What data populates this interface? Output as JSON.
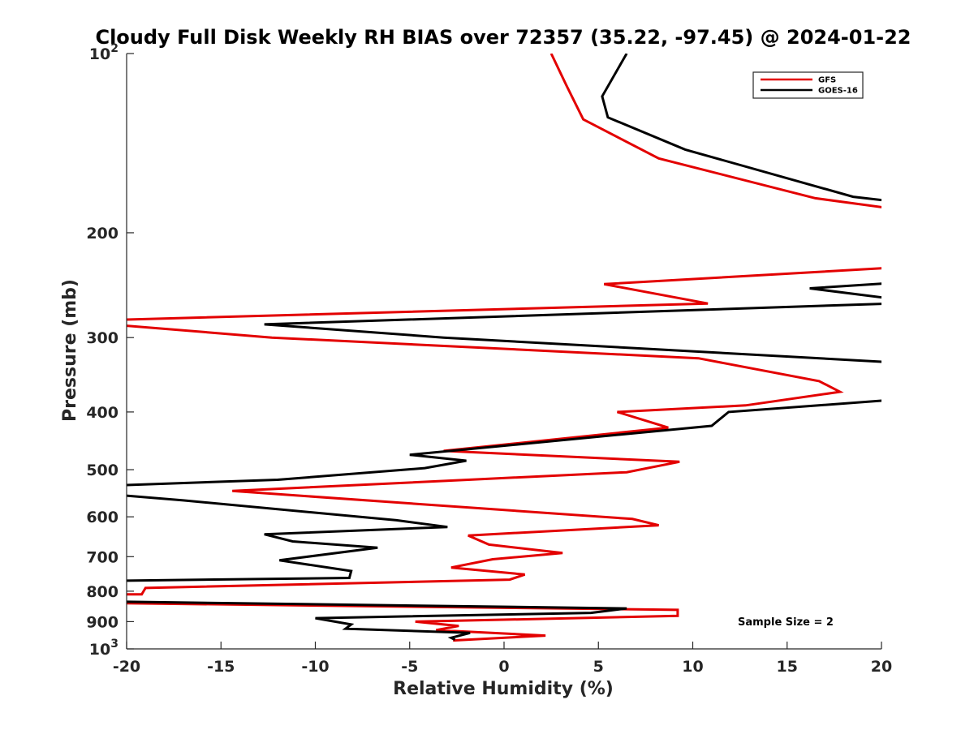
{
  "chart_data": {
    "type": "line",
    "title": "Cloudy Full Disk Weekly RH BIAS over 72357 (35.22, -97.45) @ 2024-01-22",
    "xlabel": "Relative Humidity (%)",
    "ylabel": "Pressure (mb)",
    "xlim": [
      -20,
      20
    ],
    "ylim": [
      100,
      1000
    ],
    "y_scale": "log",
    "y_reversed": true,
    "grid": false,
    "legend_position": "top-right",
    "x_ticks": [
      {
        "value": -20,
        "label": "-20"
      },
      {
        "value": -15,
        "label": "-15"
      },
      {
        "value": -10,
        "label": "-10"
      },
      {
        "value": -5,
        "label": "-5"
      },
      {
        "value": 0,
        "label": "0"
      },
      {
        "value": 5,
        "label": "5"
      },
      {
        "value": 10,
        "label": "10"
      },
      {
        "value": 15,
        "label": "15"
      },
      {
        "value": 20,
        "label": "20"
      }
    ],
    "y_ticks": [
      {
        "value": 100,
        "base": "10",
        "exp": "2"
      },
      {
        "value": 200,
        "base": "200"
      },
      {
        "value": 300,
        "base": "300"
      },
      {
        "value": 400,
        "base": "400"
      },
      {
        "value": 500,
        "base": "500"
      },
      {
        "value": 600,
        "base": "600"
      },
      {
        "value": 700,
        "base": "700"
      },
      {
        "value": 800,
        "base": "800"
      },
      {
        "value": 900,
        "base": "900"
      },
      {
        "value": 1000,
        "base": "10",
        "exp": "3"
      }
    ],
    "annotation": "Sample Size = 2",
    "series": [
      {
        "name": "GFS",
        "color": "#e30000",
        "points": [
          [
            2.5,
            100
          ],
          [
            3.3,
            113
          ],
          [
            4.2,
            129
          ],
          [
            8.2,
            150
          ],
          [
            16.5,
            175
          ],
          [
            20.5,
            182
          ],
          [
            null,
            null
          ],
          [
            20.5,
            229
          ],
          [
            5.3,
            244
          ],
          [
            10.8,
            263
          ],
          [
            -20.3,
            280
          ],
          [
            -20.3,
            286
          ],
          [
            -12.3,
            300
          ],
          [
            10.3,
            325
          ],
          [
            16.7,
            355
          ],
          [
            17.8,
            370
          ],
          [
            12.8,
            390
          ],
          [
            6.0,
            400
          ],
          [
            8.7,
            425
          ],
          [
            -3.2,
            465
          ],
          [
            9.3,
            485
          ],
          [
            6.5,
            505
          ],
          [
            -1.9,
            520
          ],
          [
            -14.4,
            543
          ],
          [
            6.8,
            605
          ],
          [
            8.2,
            620
          ],
          [
            -1.9,
            645
          ],
          [
            -0.8,
            668
          ],
          [
            3.1,
            690
          ],
          [
            -0.6,
            707
          ],
          [
            -2.8,
            730
          ],
          [
            1.1,
            750
          ],
          [
            0.3,
            765
          ],
          [
            -19.0,
            790
          ],
          [
            -19.2,
            810
          ],
          [
            -20.2,
            810
          ],
          [
            null,
            null
          ],
          [
            -20.2,
            838
          ],
          [
            9.2,
            860
          ],
          [
            9.2,
            880
          ],
          [
            -4.7,
            900
          ],
          [
            -2.4,
            915
          ],
          [
            -3.6,
            930
          ],
          [
            2.2,
            950
          ],
          [
            -2.7,
            968
          ]
        ]
      },
      {
        "name": "GOES-16",
        "color": "#000000",
        "points": [
          [
            6.5,
            100
          ],
          [
            5.2,
            118
          ],
          [
            5.5,
            128
          ],
          [
            9.6,
            145
          ],
          [
            18.5,
            174
          ],
          [
            20.5,
            177
          ],
          [
            null,
            null
          ],
          [
            20.5,
            243
          ],
          [
            16.2,
            248
          ],
          [
            20.5,
            258
          ],
          [
            null,
            null
          ],
          [
            20.5,
            263
          ],
          [
            -12.7,
            285
          ],
          [
            -3.2,
            300
          ],
          [
            20.5,
            330
          ],
          [
            null,
            null
          ],
          [
            20.5,
            382
          ],
          [
            11.9,
            400
          ],
          [
            11.0,
            422
          ],
          [
            -5.0,
            472
          ],
          [
            -2.0,
            483
          ],
          [
            -4.2,
            497
          ],
          [
            -12.0,
            520
          ],
          [
            -20.3,
            531
          ],
          [
            null,
            null
          ],
          [
            -20.3,
            552
          ],
          [
            -17.0,
            563
          ],
          [
            -5.7,
            608
          ],
          [
            -3.0,
            624
          ],
          [
            -12.7,
            642
          ],
          [
            -11.2,
            660
          ],
          [
            -6.7,
            676
          ],
          [
            -11.9,
            710
          ],
          [
            -8.1,
            740
          ],
          [
            -8.2,
            760
          ],
          [
            -20.3,
            768
          ],
          [
            null,
            null
          ],
          [
            -20.3,
            833
          ],
          [
            6.5,
            855
          ],
          [
            4.6,
            870
          ],
          [
            -10.0,
            888
          ],
          [
            -8.1,
            910
          ],
          [
            -8.4,
            925
          ],
          [
            -1.8,
            940
          ],
          [
            -2.8,
            958
          ],
          [
            -2.6,
            965
          ]
        ]
      }
    ]
  }
}
